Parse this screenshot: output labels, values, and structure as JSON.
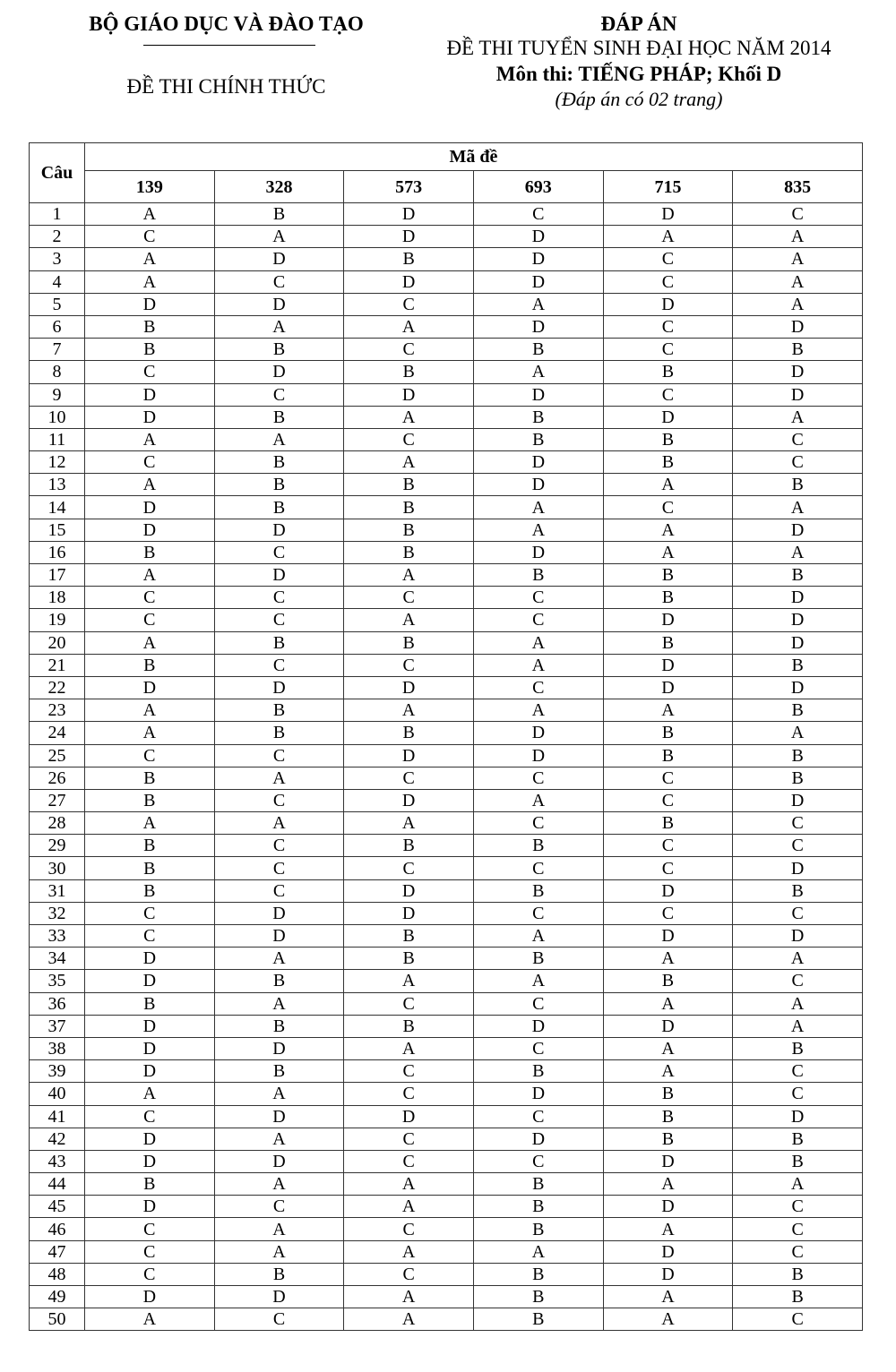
{
  "header_left": {
    "ministry": "BỘ GIÁO DỤC VÀ ĐÀO TẠO",
    "status": "ĐỀ THI CHÍNH THỨC"
  },
  "header_right": {
    "title": "ĐÁP ÁN",
    "exam": "ĐỀ THI TUYỂN SINH ĐẠI HỌC NĂM 2014",
    "subject": "Môn thi: TIẾNG PHÁP; Khối D",
    "note": "(Đáp án có 02 trang)"
  },
  "table": {
    "question_header": "Câu",
    "code_header": "Mã đề",
    "codes": [
      "139",
      "328",
      "573",
      "693",
      "715",
      "835"
    ],
    "rows": [
      [
        "1",
        "A",
        "B",
        "D",
        "C",
        "D",
        "C"
      ],
      [
        "2",
        "C",
        "A",
        "D",
        "D",
        "A",
        "A"
      ],
      [
        "3",
        "A",
        "D",
        "B",
        "D",
        "C",
        "A"
      ],
      [
        "4",
        "A",
        "C",
        "D",
        "D",
        "C",
        "A"
      ],
      [
        "5",
        "D",
        "D",
        "C",
        "A",
        "D",
        "A"
      ],
      [
        "6",
        "B",
        "A",
        "A",
        "D",
        "C",
        "D"
      ],
      [
        "7",
        "B",
        "B",
        "C",
        "B",
        "C",
        "B"
      ],
      [
        "8",
        "C",
        "D",
        "B",
        "A",
        "B",
        "D"
      ],
      [
        "9",
        "D",
        "C",
        "D",
        "D",
        "C",
        "D"
      ],
      [
        "10",
        "D",
        "B",
        "A",
        "B",
        "D",
        "A"
      ],
      [
        "11",
        "A",
        "A",
        "C",
        "B",
        "B",
        "C"
      ],
      [
        "12",
        "C",
        "B",
        "A",
        "D",
        "B",
        "C"
      ],
      [
        "13",
        "A",
        "B",
        "B",
        "D",
        "A",
        "B"
      ],
      [
        "14",
        "D",
        "B",
        "B",
        "A",
        "C",
        "A"
      ],
      [
        "15",
        "D",
        "D",
        "B",
        "A",
        "A",
        "D"
      ],
      [
        "16",
        "B",
        "C",
        "B",
        "D",
        "A",
        "A"
      ],
      [
        "17",
        "A",
        "D",
        "A",
        "B",
        "B",
        "B"
      ],
      [
        "18",
        "C",
        "C",
        "C",
        "C",
        "B",
        "D"
      ],
      [
        "19",
        "C",
        "C",
        "A",
        "C",
        "D",
        "D"
      ],
      [
        "20",
        "A",
        "B",
        "B",
        "A",
        "B",
        "D"
      ],
      [
        "21",
        "B",
        "C",
        "C",
        "A",
        "D",
        "B"
      ],
      [
        "22",
        "D",
        "D",
        "D",
        "C",
        "D",
        "D"
      ],
      [
        "23",
        "A",
        "B",
        "A",
        "A",
        "A",
        "B"
      ],
      [
        "24",
        "A",
        "B",
        "B",
        "D",
        "B",
        "A"
      ],
      [
        "25",
        "C",
        "C",
        "D",
        "D",
        "B",
        "B"
      ],
      [
        "26",
        "B",
        "A",
        "C",
        "C",
        "C",
        "B"
      ],
      [
        "27",
        "B",
        "C",
        "D",
        "A",
        "C",
        "D"
      ],
      [
        "28",
        "A",
        "A",
        "A",
        "C",
        "B",
        "C"
      ],
      [
        "29",
        "B",
        "C",
        "B",
        "B",
        "C",
        "C"
      ],
      [
        "30",
        "B",
        "C",
        "C",
        "C",
        "C",
        "D"
      ],
      [
        "31",
        "B",
        "C",
        "D",
        "B",
        "D",
        "B"
      ],
      [
        "32",
        "C",
        "D",
        "D",
        "C",
        "C",
        "C"
      ],
      [
        "33",
        "C",
        "D",
        "B",
        "A",
        "D",
        "D"
      ],
      [
        "34",
        "D",
        "A",
        "B",
        "B",
        "A",
        "A"
      ],
      [
        "35",
        "D",
        "B",
        "A",
        "A",
        "B",
        "C"
      ],
      [
        "36",
        "B",
        "A",
        "C",
        "C",
        "A",
        "A"
      ],
      [
        "37",
        "D",
        "B",
        "B",
        "D",
        "D",
        "A"
      ],
      [
        "38",
        "D",
        "D",
        "A",
        "C",
        "A",
        "B"
      ],
      [
        "39",
        "D",
        "B",
        "C",
        "B",
        "A",
        "C"
      ],
      [
        "40",
        "A",
        "A",
        "C",
        "D",
        "B",
        "C"
      ],
      [
        "41",
        "C",
        "D",
        "D",
        "C",
        "B",
        "D"
      ],
      [
        "42",
        "D",
        "A",
        "C",
        "D",
        "B",
        "B"
      ],
      [
        "43",
        "D",
        "D",
        "C",
        "C",
        "D",
        "B"
      ],
      [
        "44",
        "B",
        "A",
        "A",
        "B",
        "A",
        "A"
      ],
      [
        "45",
        "D",
        "C",
        "A",
        "B",
        "D",
        "C"
      ],
      [
        "46",
        "C",
        "A",
        "C",
        "B",
        "A",
        "C"
      ],
      [
        "47",
        "C",
        "A",
        "A",
        "A",
        "D",
        "C"
      ],
      [
        "48",
        "C",
        "B",
        "C",
        "B",
        "D",
        "B"
      ],
      [
        "49",
        "D",
        "D",
        "A",
        "B",
        "A",
        "B"
      ],
      [
        "50",
        "A",
        "C",
        "A",
        "B",
        "A",
        "C"
      ]
    ]
  }
}
